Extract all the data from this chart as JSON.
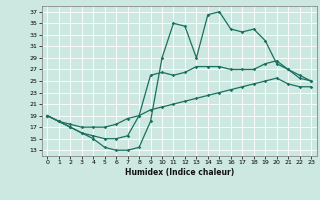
{
  "xlabel": "Humidex (Indice chaleur)",
  "bg_color": "#cce8e0",
  "line_color": "#1a7060",
  "grid_color": "#ffffff",
  "xlim": [
    -0.5,
    23.5
  ],
  "ylim": [
    12,
    38
  ],
  "xticks": [
    0,
    1,
    2,
    3,
    4,
    5,
    6,
    7,
    8,
    9,
    10,
    11,
    12,
    13,
    14,
    15,
    16,
    17,
    18,
    19,
    20,
    21,
    22,
    23
  ],
  "yticks": [
    13,
    15,
    17,
    19,
    21,
    23,
    25,
    27,
    29,
    31,
    33,
    35,
    37
  ],
  "line1_x": [
    0,
    1,
    2,
    3,
    4,
    5,
    6,
    7,
    8,
    9,
    10,
    11,
    12,
    13,
    14,
    15,
    16,
    17,
    18,
    19,
    20,
    21,
    22,
    23
  ],
  "line1_y": [
    19,
    18,
    17,
    16,
    15,
    13.5,
    13,
    13,
    13.5,
    18,
    29,
    35,
    34.5,
    29,
    36.5,
    37,
    34,
    33.5,
    34,
    32,
    28,
    27,
    25.5,
    25
  ],
  "line2_x": [
    0,
    1,
    2,
    3,
    4,
    5,
    6,
    7,
    8,
    9,
    10,
    11,
    12,
    13,
    14,
    15,
    16,
    17,
    18,
    19,
    20,
    21,
    22,
    23
  ],
  "line2_y": [
    19,
    18,
    17,
    16,
    15.5,
    15,
    15,
    15.5,
    19,
    26,
    26.5,
    26,
    26.5,
    27.5,
    27.5,
    27.5,
    27,
    27,
    27,
    28,
    28.5,
    27,
    26,
    25
  ],
  "line3_x": [
    0,
    1,
    2,
    3,
    4,
    5,
    6,
    7,
    8,
    9,
    10,
    11,
    12,
    13,
    14,
    15,
    16,
    17,
    18,
    19,
    20,
    21,
    22,
    23
  ],
  "line3_y": [
    19,
    18,
    17.5,
    17,
    17,
    17,
    17.5,
    18.5,
    19,
    20,
    20.5,
    21,
    21.5,
    22,
    22.5,
    23,
    23.5,
    24,
    24.5,
    25,
    25.5,
    24.5,
    24,
    24
  ]
}
